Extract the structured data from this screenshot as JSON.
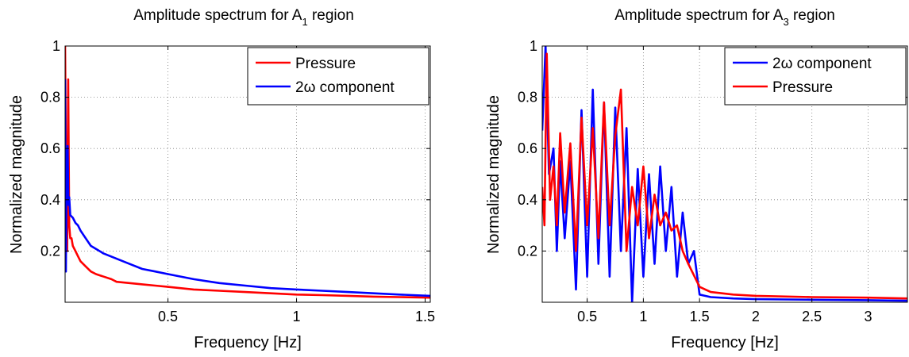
{
  "chart_data": [
    {
      "type": "line",
      "title": "Amplitude spectrum for A",
      "title_sub": "1",
      "title_after": " region",
      "xlabel": "Frequency [Hz]",
      "ylabel": "Normalized magnitude",
      "xlim": [
        0.1,
        1.52
      ],
      "ylim": [
        0,
        1.0
      ],
      "xticks": [
        0.5,
        1,
        1.5
      ],
      "xtick_labels": [
        "0.5",
        "1",
        "1.5"
      ],
      "yticks": [
        0.2,
        0.4,
        0.6,
        0.8,
        1
      ],
      "ytick_labels": [
        "0.2",
        "0.4",
        "0.6",
        "0.8",
        "1"
      ],
      "grid": true,
      "legend_position": "top-right",
      "series": [
        {
          "name": "Pressure",
          "color": "#ff0000",
          "x": [
            0.1,
            0.104,
            0.108,
            0.112,
            0.116,
            0.12,
            0.125,
            0.13,
            0.14,
            0.15,
            0.16,
            0.18,
            0.2,
            0.22,
            0.25,
            0.28,
            0.3,
            0.35,
            0.4,
            0.45,
            0.5,
            0.6,
            0.7,
            0.8,
            0.9,
            1.0,
            1.1,
            1.2,
            1.3,
            1.4,
            1.52
          ],
          "values": [
            1.0,
            0.45,
            0.2,
            0.87,
            0.3,
            0.25,
            0.25,
            0.22,
            0.2,
            0.18,
            0.16,
            0.14,
            0.12,
            0.11,
            0.1,
            0.09,
            0.08,
            0.075,
            0.07,
            0.065,
            0.06,
            0.05,
            0.045,
            0.04,
            0.035,
            0.03,
            0.028,
            0.025,
            0.022,
            0.02,
            0.018
          ]
        },
        {
          "name": "2ω component",
          "color": "#0000ff",
          "x": [
            0.1,
            0.103,
            0.106,
            0.11,
            0.113,
            0.116,
            0.12,
            0.13,
            0.14,
            0.15,
            0.16,
            0.18,
            0.2,
            0.25,
            0.3,
            0.35,
            0.4,
            0.45,
            0.5,
            0.6,
            0.7,
            0.8,
            0.9,
            1.0,
            1.1,
            1.2,
            1.3,
            1.4,
            1.52
          ],
          "values": [
            0.87,
            0.12,
            0.55,
            0.61,
            0.38,
            0.41,
            0.34,
            0.33,
            0.31,
            0.3,
            0.28,
            0.25,
            0.22,
            0.19,
            0.17,
            0.15,
            0.13,
            0.12,
            0.11,
            0.09,
            0.075,
            0.065,
            0.055,
            0.05,
            0.045,
            0.04,
            0.035,
            0.03,
            0.025
          ]
        }
      ]
    },
    {
      "type": "line",
      "title": "Amplitude spectrum for A",
      "title_sub": "3",
      "title_after": " region",
      "xlabel": "Frequency [Hz]",
      "ylabel": "Normalized magnitude",
      "xlim": [
        0.1,
        3.35
      ],
      "ylim": [
        0,
        1.0
      ],
      "xticks": [
        0.5,
        1,
        1.5,
        2,
        2.5,
        3
      ],
      "xtick_labels": [
        "0.5",
        "1",
        "1.5",
        "2",
        "2.5",
        "3"
      ],
      "yticks": [
        0.2,
        0.4,
        0.6,
        0.8,
        1
      ],
      "ytick_labels": [
        "0.2",
        "0.4",
        "0.6",
        "0.8",
        "1"
      ],
      "grid": true,
      "legend_position": "top-right",
      "series": [
        {
          "name": "2ω component",
          "color": "#0000ff",
          "x": [
            0.1,
            0.13,
            0.16,
            0.2,
            0.23,
            0.26,
            0.3,
            0.35,
            0.4,
            0.45,
            0.5,
            0.55,
            0.6,
            0.65,
            0.7,
            0.75,
            0.8,
            0.85,
            0.9,
            0.95,
            1.0,
            1.05,
            1.1,
            1.15,
            1.2,
            1.25,
            1.3,
            1.35,
            1.4,
            1.45,
            1.5,
            1.6,
            1.8,
            2.0,
            2.5,
            3.0,
            3.35
          ],
          "values": [
            0.67,
            1.0,
            0.5,
            0.6,
            0.2,
            0.55,
            0.25,
            0.55,
            0.05,
            0.75,
            0.1,
            0.83,
            0.15,
            0.78,
            0.1,
            0.76,
            0.2,
            0.68,
            0.0,
            0.52,
            0.1,
            0.5,
            0.15,
            0.53,
            0.2,
            0.45,
            0.1,
            0.35,
            0.15,
            0.2,
            0.03,
            0.02,
            0.015,
            0.012,
            0.01,
            0.008,
            0.006
          ]
        },
        {
          "name": "Pressure",
          "color": "#ff0000",
          "x": [
            0.1,
            0.12,
            0.14,
            0.17,
            0.2,
            0.23,
            0.26,
            0.3,
            0.35,
            0.4,
            0.45,
            0.5,
            0.55,
            0.6,
            0.65,
            0.7,
            0.75,
            0.8,
            0.85,
            0.9,
            0.95,
            1.0,
            1.05,
            1.1,
            1.15,
            1.2,
            1.25,
            1.3,
            1.35,
            1.4,
            1.5,
            1.6,
            1.8,
            2.0,
            2.5,
            3.0,
            3.35
          ],
          "values": [
            0.45,
            0.3,
            0.97,
            0.4,
            0.53,
            0.3,
            0.66,
            0.35,
            0.62,
            0.2,
            0.72,
            0.3,
            0.68,
            0.25,
            0.78,
            0.3,
            0.65,
            0.83,
            0.2,
            0.45,
            0.3,
            0.53,
            0.25,
            0.42,
            0.3,
            0.35,
            0.28,
            0.3,
            0.2,
            0.15,
            0.06,
            0.04,
            0.03,
            0.025,
            0.02,
            0.018,
            0.015
          ]
        }
      ]
    }
  ]
}
